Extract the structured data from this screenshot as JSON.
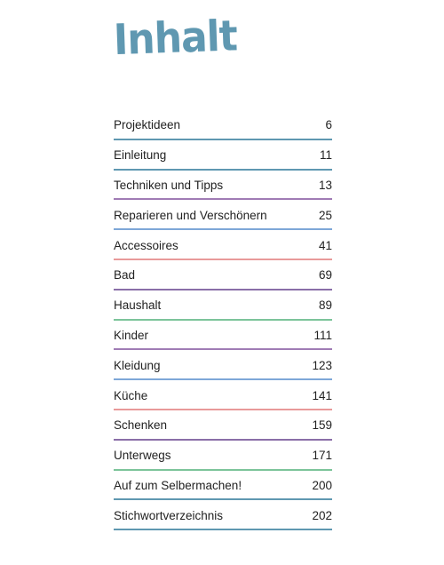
{
  "title": "Inhalt",
  "toc": [
    {
      "label": "Projektideen",
      "page": "6",
      "color": "#5f98b1"
    },
    {
      "label": "Einleitung",
      "page": "11",
      "color": "#5f98b1"
    },
    {
      "label": "Techniken und Tipps",
      "page": "13",
      "color": "#a07cb5"
    },
    {
      "label": "Reparieren und Verschönern",
      "page": "25",
      "color": "#7ea7d8"
    },
    {
      "label": "Accessoires",
      "page": "41",
      "color": "#e99a9a"
    },
    {
      "label": "Bad",
      "page": "69",
      "color": "#8a6fa8"
    },
    {
      "label": "Haushalt",
      "page": "89",
      "color": "#7cc49a"
    },
    {
      "label": "Kinder",
      "page": "111",
      "color": "#a07cb5"
    },
    {
      "label": "Kleidung",
      "page": "123",
      "color": "#7ea7d8"
    },
    {
      "label": "Küche",
      "page": "141",
      "color": "#e99a9a"
    },
    {
      "label": "Schenken",
      "page": "159",
      "color": "#8a6fa8"
    },
    {
      "label": "Unterwegs",
      "page": "171",
      "color": "#7cc49a"
    },
    {
      "label": "Auf zum Selbermachen!",
      "page": "200",
      "color": "#5f98b1"
    },
    {
      "label": "Stichwortverzeichnis",
      "page": "202",
      "color": "#5f98b1"
    }
  ]
}
